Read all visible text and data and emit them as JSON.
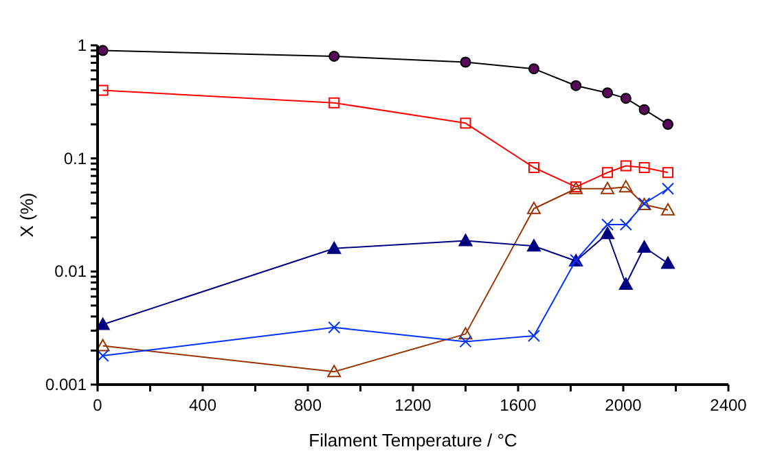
{
  "chart_data": {
    "type": "line",
    "xlabel": "Filament Temperature / °C",
    "ylabel": "X (%)",
    "log": "y",
    "grid": false,
    "xlim": [
      0,
      2400
    ],
    "xticks": [
      0,
      {
        "value": 200,
        "label": null
      },
      400,
      {
        "value": 600,
        "label": null
      },
      800,
      {
        "value": 1000,
        "label": null
      },
      1200,
      {
        "value": 1400,
        "label": null
      },
      1600,
      {
        "value": 1800,
        "label": null
      },
      2000,
      {
        "value": 2200,
        "label": null
      },
      2400
    ],
    "ylim": [
      0.001,
      1
    ],
    "yticks": [
      0.001,
      {
        "value": 0.002,
        "label": null
      },
      {
        "value": 0.003,
        "label": null
      },
      {
        "value": 0.004,
        "label": null
      },
      {
        "value": 0.005,
        "label": null
      },
      {
        "value": 0.006,
        "label": null
      },
      {
        "value": 0.007,
        "label": null
      },
      {
        "value": 0.008,
        "label": null
      },
      {
        "value": 0.009,
        "label": null
      },
      0.01,
      {
        "value": 0.02,
        "label": null
      },
      {
        "value": 0.03,
        "label": null
      },
      {
        "value": 0.04,
        "label": null
      },
      {
        "value": 0.05,
        "label": null
      },
      {
        "value": 0.06,
        "label": null
      },
      {
        "value": 0.07,
        "label": null
      },
      {
        "value": 0.08,
        "label": null
      },
      {
        "value": 0.09,
        "label": null
      },
      0.1,
      {
        "value": 0.2,
        "label": null
      },
      {
        "value": 0.3,
        "label": null
      },
      {
        "value": 0.4,
        "label": null
      },
      {
        "value": 0.5,
        "label": null
      },
      {
        "value": 0.6,
        "label": null
      },
      {
        "value": 0.7,
        "label": null
      },
      {
        "value": 0.8,
        "label": null
      },
      {
        "value": 0.9,
        "label": null
      },
      1
    ],
    "x": [
      20,
      900,
      1400,
      1660,
      1820,
      1940,
      2010,
      2080,
      2170
    ],
    "series": [
      {
        "color": "#000000",
        "marker": "circle",
        "values": [
          0.9,
          0.8,
          0.71,
          0.62,
          0.44,
          0.38,
          0.34,
          0.27,
          0.2
        ]
      },
      {
        "color": "#ff0000",
        "marker": "square",
        "values": [
          0.4,
          0.31,
          0.205,
          0.083,
          0.056,
          0.075,
          0.086,
          0.083,
          0.075
        ]
      },
      {
        "color": "#993300",
        "marker": "triangle",
        "values": [
          0.0022,
          0.0013,
          0.0028,
          0.036,
          0.054,
          0.054,
          0.056,
          0.039,
          0.035
        ]
      },
      {
        "color": "#000080",
        "marker": "triangle",
        "values": [
          0.0034,
          0.016,
          0.0187,
          0.0168,
          0.0124,
          0.0216,
          0.0077,
          0.0164,
          0.0118
        ]
      },
      {
        "color": "#0033ff",
        "marker": "cross",
        "values": [
          0.0018,
          0.0032,
          0.0024,
          0.0027,
          0.0126,
          0.026,
          0.026,
          0.04,
          0.054
        ]
      }
    ]
  }
}
